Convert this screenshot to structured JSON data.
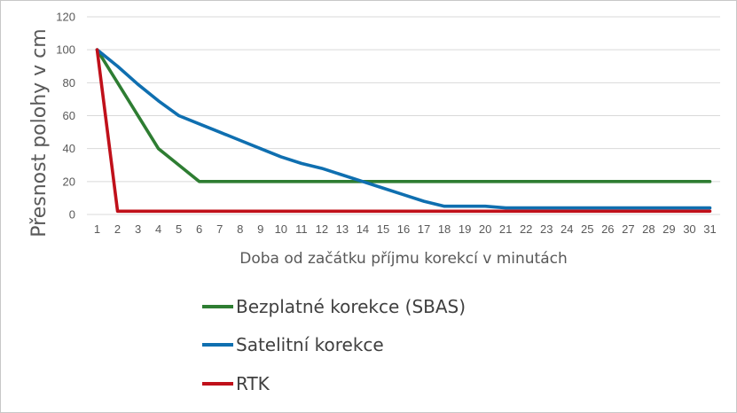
{
  "chart_data": {
    "type": "line",
    "title": "",
    "xlabel": "Doba od začátku příjmu korekcí v minutách",
    "ylabel": "Přesnost polohy v cm",
    "ylim": [
      0,
      120
    ],
    "yticks": [
      0,
      20,
      40,
      60,
      80,
      100,
      120
    ],
    "grid": "horizontal",
    "legend_position": "bottom",
    "categories": [
      "1",
      "2",
      "3",
      "4",
      "5",
      "6",
      "7",
      "8",
      "9",
      "10",
      "11",
      "12",
      "13",
      "14",
      "15",
      "16",
      "17",
      "18",
      "19",
      "20",
      "21",
      "22",
      "23",
      "24",
      "25",
      "26",
      "27",
      "28",
      "29",
      "30",
      "31"
    ],
    "series": [
      {
        "name": "Bezplatné korekce (SBAS)",
        "color": "#2e7d32",
        "values": [
          100,
          80,
          60,
          40,
          30,
          20,
          20,
          20,
          20,
          20,
          20,
          20,
          20,
          20,
          20,
          20,
          20,
          20,
          20,
          20,
          20,
          20,
          20,
          20,
          20,
          20,
          20,
          20,
          20,
          20,
          20
        ]
      },
      {
        "name": "Satelitní korekce",
        "color": "#0f6fb0",
        "values": [
          100,
          90,
          79,
          69,
          60,
          55,
          50,
          45,
          40,
          35,
          31,
          28,
          24,
          20,
          16,
          12,
          8,
          5,
          5,
          5,
          4,
          4,
          4,
          4,
          4,
          4,
          4,
          4,
          4,
          4,
          4
        ]
      },
      {
        "name": "RTK",
        "color": "#c0101a",
        "values": [
          100,
          2,
          2,
          2,
          2,
          2,
          2,
          2,
          2,
          2,
          2,
          2,
          2,
          2,
          2,
          2,
          2,
          2,
          2,
          2,
          2,
          2,
          2,
          2,
          2,
          2,
          2,
          2,
          2,
          2,
          2
        ]
      }
    ]
  }
}
